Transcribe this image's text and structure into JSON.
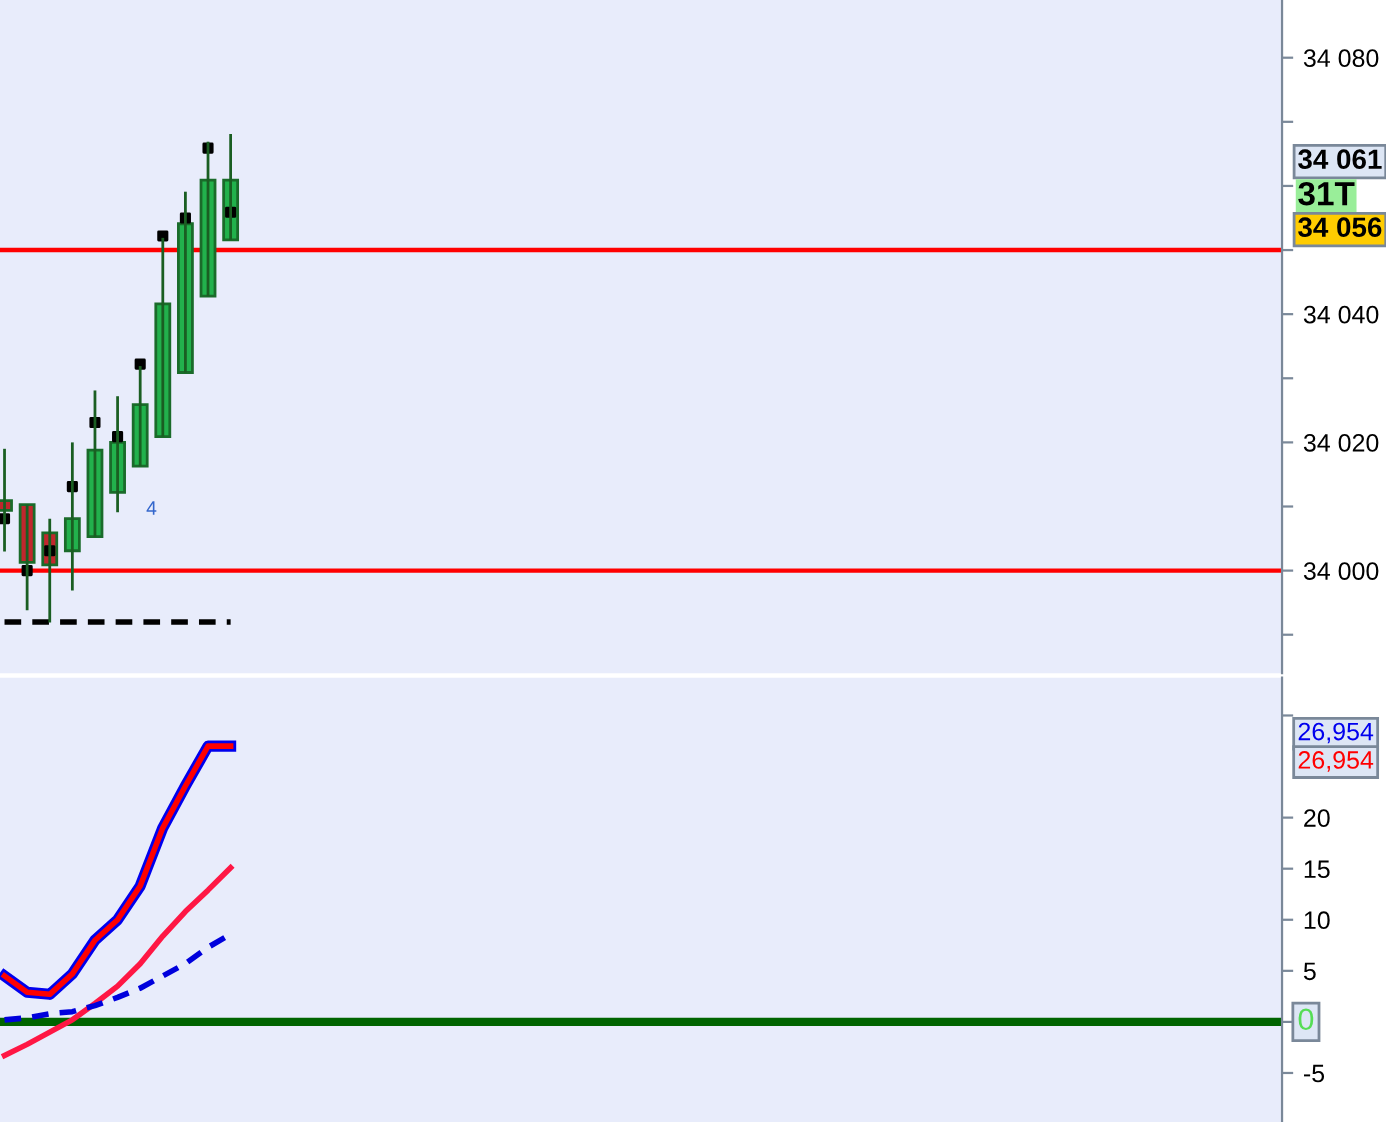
{
  "chart_data": [
    {
      "type": "candlestick",
      "tick_labels": "y",
      "categories": [
        null,
        null,
        null,
        null,
        null,
        null,
        null,
        null,
        null,
        null,
        null,
        null,
        null,
        null,
        null,
        null,
        null,
        null,
        null,
        null,
        null,
        null,
        null,
        null,
        null,
        null,
        null,
        null,
        null,
        null,
        null,
        null,
        null,
        null,
        null,
        null,
        null,
        null,
        null,
        null,
        null,
        null,
        null,
        null,
        null,
        null,
        null,
        null,
        null,
        null,
        null,
        null,
        null,
        null,
        null,
        null,
        null
      ],
      "ohlc": [
        [
          34010.9,
          34019,
          34003,
          34009.4
        ],
        [
          34010.3,
          34010.3,
          33993.8,
          34001.3
        ],
        [
          34005.9,
          34008.1,
          33991.9,
          34000.9
        ],
        [
          34003.1,
          34020,
          33996.9,
          34008.1
        ],
        [
          34005.3,
          34028.1,
          34005.3,
          34018.8
        ],
        [
          34012.2,
          34027.2,
          34009.1,
          34020
        ],
        [
          34016.3,
          34031.9,
          34016.3,
          34025.9
        ],
        [
          34020.9,
          34051.9,
          34020.9,
          34041.6
        ],
        [
          34030.9,
          34059.1,
          34030.9,
          34054.1
        ],
        [
          34042.8,
          34066.9,
          34042.8,
          34060.9
        ],
        [
          34051.6,
          34068.1,
          34051.6,
          34060.9
        ],
        null,
        null,
        null,
        null,
        null,
        null,
        null,
        null,
        null,
        null,
        null,
        null,
        null,
        null,
        null,
        null,
        null,
        null,
        null,
        null,
        null,
        null,
        null,
        null,
        null,
        null,
        null,
        null,
        null,
        null,
        null,
        null,
        null,
        null,
        null,
        null,
        null,
        null,
        null,
        null,
        null,
        null,
        null,
        null,
        null,
        null
      ],
      "series": [
        {
          "type": "scatter",
          "marker": "square",
          "color": "#000000",
          "values": [
            34008.1,
            34000,
            34003.1,
            34013.1,
            34023.1,
            34020.9,
            34032.2,
            34052.2,
            34055,
            34065.9,
            34055.9,
            null,
            null,
            null,
            null,
            null,
            null,
            null,
            null,
            null,
            null,
            null,
            null,
            null,
            null,
            null,
            null,
            null,
            null,
            null,
            null,
            null,
            null,
            null,
            null,
            null,
            null,
            null,
            null,
            null,
            null,
            null,
            null,
            null,
            null,
            null,
            null,
            null,
            null,
            null,
            null,
            null,
            null,
            null,
            null,
            null,
            null
          ]
        },
        {
          "type": "line",
          "line_style": "dashed",
          "color": "#000000",
          "values": [
            33992,
            33992,
            33992,
            33992,
            33992,
            33992,
            33992,
            33992,
            33992,
            33992,
            33992,
            null,
            null,
            null,
            null,
            null,
            null,
            null,
            null,
            null,
            null,
            null,
            null,
            null,
            null,
            null,
            null,
            null,
            null,
            null,
            null,
            null,
            null,
            null,
            null,
            null,
            null,
            null,
            null,
            null,
            null,
            null,
            null,
            null,
            null,
            null,
            null,
            null,
            null,
            null,
            null,
            null,
            null,
            null,
            null,
            null,
            null
          ]
        }
      ],
      "ylim": [
        33984,
        34089
      ],
      "yticks": [
        {
          "value": 33990,
          "label": null
        },
        {
          "value": 34000,
          "label": "34 000"
        },
        {
          "value": 34010,
          "label": null
        },
        {
          "value": 34020,
          "label": "34 020"
        },
        {
          "value": 34030,
          "label": null
        },
        {
          "value": 34040,
          "label": "34 040"
        },
        {
          "value": 34050,
          "label": null
        },
        {
          "value": 34060,
          "label": null
        },
        {
          "value": 34070,
          "label": null
        },
        {
          "value": 34080,
          "label": "34 080"
        }
      ],
      "ref_lines": [
        {
          "axis": "y",
          "value": 34050,
          "color": "#ff0000"
        },
        {
          "axis": "y",
          "value": 34000,
          "color": "#ff0000"
        }
      ],
      "annotations": [
        "34 061",
        "31T",
        "34 056",
        "4"
      ]
    },
    {
      "type": "line",
      "tick_labels": "y",
      "categories": [
        null,
        null,
        null,
        null,
        null,
        null,
        null,
        null,
        null,
        null,
        null,
        null,
        null,
        null,
        null,
        null,
        null,
        null,
        null,
        null,
        null,
        null,
        null,
        null,
        null,
        null,
        null,
        null,
        null,
        null,
        null,
        null,
        null,
        null,
        null,
        null,
        null,
        null,
        null,
        null,
        null,
        null,
        null,
        null,
        null,
        null,
        null,
        null,
        null,
        null,
        null,
        null,
        null,
        null,
        null,
        null,
        null
      ],
      "series": [
        {
          "color": "#0000ee",
          "values": [
            4.5,
            2.9,
            2.7,
            4.7,
            8.0,
            10.0,
            13.3,
            19.0,
            23.1,
            27.0,
            27.0,
            null,
            null,
            null,
            null,
            null,
            null,
            null,
            null,
            null,
            null,
            null,
            null,
            null,
            null,
            null,
            null,
            null,
            null,
            null,
            null,
            null,
            null,
            null,
            null,
            null,
            null,
            null,
            null,
            null,
            null,
            null,
            null,
            null,
            null,
            null,
            null,
            null,
            null,
            null,
            null,
            null,
            null,
            null,
            null,
            null,
            null
          ]
        },
        {
          "color": "#ff0000",
          "values": [
            4.5,
            2.9,
            2.7,
            4.7,
            8.0,
            10.0,
            13.3,
            19.0,
            23.1,
            27.0,
            27.0,
            null,
            null,
            null,
            null,
            null,
            null,
            null,
            null,
            null,
            null,
            null,
            null,
            null,
            null,
            null,
            null,
            null,
            null,
            null,
            null,
            null,
            null,
            null,
            null,
            null,
            null,
            null,
            null,
            null,
            null,
            null,
            null,
            null,
            null,
            null,
            null,
            null,
            null,
            null,
            null,
            null,
            null,
            null,
            null,
            null,
            null
          ]
        },
        {
          "color": "#ff1744",
          "values": [
            -3.3,
            -2.2,
            -1.0,
            0.2,
            1.8,
            3.5,
            5.7,
            8.4,
            10.8,
            12.9,
            15.1,
            null,
            null,
            null,
            null,
            null,
            null,
            null,
            null,
            null,
            null,
            null,
            null,
            null,
            null,
            null,
            null,
            null,
            null,
            null,
            null,
            null,
            null,
            null,
            null,
            null,
            null,
            null,
            null,
            null,
            null,
            null,
            null,
            null,
            null,
            null,
            null,
            null,
            null,
            null,
            null,
            null,
            null,
            null,
            null,
            null,
            null
          ]
        },
        {
          "color": "#0000dd",
          "line_style": "dashed",
          "values": [
            0.2,
            0.4,
            0.8,
            1.0,
            1.6,
            2.4,
            3.3,
            4.5,
            5.7,
            7.3,
            8.6,
            null,
            null,
            null,
            null,
            null,
            null,
            null,
            null,
            null,
            null,
            null,
            null,
            null,
            null,
            null,
            null,
            null,
            null,
            null,
            null,
            null,
            null,
            null,
            null,
            null,
            null,
            null,
            null,
            null,
            null,
            null,
            null,
            null,
            null,
            null,
            null,
            null,
            null,
            null,
            null,
            null,
            null,
            null,
            null,
            null,
            null
          ]
        }
      ],
      "ylim": [
        -9.8,
        33.7
      ],
      "yticks": [
        -5,
        {
          "value": 0,
          "label": null
        },
        5,
        10,
        15,
        20,
        {
          "value": 30,
          "label": null
        }
      ],
      "ref_lines": [
        {
          "axis": "y",
          "value": 0,
          "label": "0",
          "color": "#006400"
        }
      ],
      "annotations": [
        "26,954",
        "26,954"
      ]
    }
  ]
}
